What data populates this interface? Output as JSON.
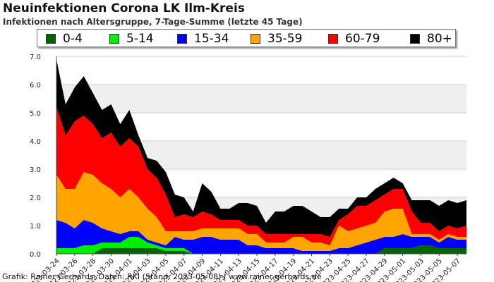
{
  "title": "Neuinfektionen Corona LK Ilm-Kreis",
  "subtitle": "Infektionen nach Altersgruppe, 7-Tage-Summe (letzte 45 Tage)",
  "footer": "Grafik: Rainer Gerhards, Daten: RKI (Stand: 2023-05-08) | www.rainer-gerhards.de",
  "legend": [
    {
      "label": "0-4",
      "color": "#006400"
    },
    {
      "label": "5-14",
      "color": "#00ee00"
    },
    {
      "label": "15-34",
      "color": "#0000ff"
    },
    {
      "label": "35-59",
      "color": "#ffa500"
    },
    {
      "label": "60-79",
      "color": "#ff0000"
    },
    {
      "label": "80+",
      "color": "#000000"
    }
  ],
  "chart_data": {
    "type": "area",
    "stacked": true,
    "ylim": [
      0,
      7
    ],
    "yticks": [
      "0.0",
      "1.0",
      "2.0",
      "3.0",
      "4.0",
      "5.0",
      "6.0",
      "7.0"
    ],
    "grid": true,
    "legend_position": "top",
    "x": [
      "2023-03-24",
      "2023-03-25",
      "2023-03-26",
      "2023-03-27",
      "2023-03-28",
      "2023-03-29",
      "2023-03-30",
      "2023-03-31",
      "2023-04-01",
      "2023-04-02",
      "2023-04-03",
      "2023-04-04",
      "2023-04-05",
      "2023-04-06",
      "2023-04-07",
      "2023-04-08",
      "2023-04-09",
      "2023-04-10",
      "2023-04-11",
      "2023-04-12",
      "2023-04-13",
      "2023-04-14",
      "2023-04-15",
      "2023-04-16",
      "2023-04-17",
      "2023-04-18",
      "2023-04-19",
      "2023-04-20",
      "2023-04-21",
      "2023-04-22",
      "2023-04-23",
      "2023-04-24",
      "2023-04-25",
      "2023-04-26",
      "2023-04-27",
      "2023-04-28",
      "2023-04-29",
      "2023-04-30",
      "2023-05-01",
      "2023-05-02",
      "2023-05-03",
      "2023-05-04",
      "2023-05-05",
      "2023-05-06",
      "2023-05-07",
      "2023-05-08"
    ],
    "xticks": [
      "2023-03-24",
      "2023-03-26",
      "2023-03-28",
      "2023-03-30",
      "2023-04-01",
      "2023-04-03",
      "2023-04-05",
      "2023-04-07",
      "2023-04-09",
      "2023-04-11",
      "2023-04-13",
      "2023-04-15",
      "2023-04-17",
      "2023-04-19",
      "2023-04-21",
      "2023-04-23",
      "2023-04-25",
      "2023-04-27",
      "2023-04-29",
      "2023-05-01",
      "2023-05-03",
      "2023-05-05",
      "2023-05-07"
    ],
    "series": [
      {
        "name": "0-4",
        "color": "#006400",
        "values": [
          0,
          0,
          0,
          0,
          0,
          0.2,
          0.2,
          0.2,
          0.2,
          0.2,
          0.2,
          0.2,
          0.1,
          0.1,
          0.1,
          0,
          0,
          0,
          0,
          0,
          0,
          0,
          0,
          0,
          0,
          0,
          0,
          0,
          0,
          0,
          0,
          0,
          0,
          0,
          0,
          0,
          0.2,
          0.2,
          0.2,
          0.2,
          0.3,
          0.3,
          0.2,
          0.2,
          0.2,
          0.2
        ]
      },
      {
        "name": "5-14",
        "color": "#00ee00",
        "values": [
          0.2,
          0.2,
          0.2,
          0.3,
          0.3,
          0.2,
          0.2,
          0.2,
          0.4,
          0.4,
          0.2,
          0.1,
          0.1,
          0.1,
          0.1,
          0,
          0,
          0,
          0,
          0,
          0,
          0,
          0,
          0,
          0,
          0,
          0,
          0,
          0,
          0,
          0,
          0,
          0,
          0,
          0,
          0,
          0,
          0,
          0,
          0,
          0,
          0,
          0,
          0,
          0,
          0
        ]
      },
      {
        "name": "15-34",
        "color": "#0000ff",
        "values": [
          1.0,
          0.9,
          0.7,
          0.9,
          0.8,
          0.5,
          0.4,
          0.3,
          0.2,
          0.2,
          0.1,
          0.1,
          0.1,
          0.4,
          0.3,
          0.5,
          0.6,
          0.6,
          0.5,
          0.5,
          0.5,
          0.3,
          0.3,
          0.2,
          0.2,
          0.2,
          0.2,
          0.1,
          0.1,
          0.1,
          0.1,
          0.2,
          0.2,
          0.3,
          0.4,
          0.5,
          0.4,
          0.4,
          0.5,
          0.4,
          0.3,
          0.3,
          0.2,
          0.4,
          0.3,
          0.3
        ]
      },
      {
        "name": "35-59",
        "color": "#ffa500",
        "values": [
          1.6,
          1.2,
          1.4,
          1.7,
          1.7,
          1.6,
          1.5,
          1.3,
          1.5,
          1.2,
          1.1,
          0.9,
          0.5,
          0.2,
          0.3,
          0.3,
          0.3,
          0.3,
          0.4,
          0.4,
          0.4,
          0.4,
          0.4,
          0.2,
          0.2,
          0.2,
          0.4,
          0.5,
          0.3,
          0.3,
          0.2,
          0.8,
          0.6,
          0.6,
          0.6,
          0.6,
          0.9,
          1.0,
          0.9,
          0.1,
          0.1,
          0.1,
          0.1,
          0.1,
          0.1,
          0.1
        ]
      },
      {
        "name": "60-79",
        "color": "#ff0000",
        "values": [
          2.4,
          1.9,
          2.4,
          2.0,
          1.8,
          1.6,
          2.0,
          1.8,
          1.8,
          1.8,
          1.4,
          1.4,
          1.3,
          0.5,
          0.6,
          0.5,
          0.6,
          0.5,
          0.3,
          0.3,
          0.3,
          0.3,
          0.3,
          0.3,
          0.3,
          0.3,
          0.1,
          0.1,
          0.3,
          0.3,
          0.3,
          0.2,
          0.6,
          0.8,
          0.7,
          0.8,
          0.6,
          0.7,
          0.7,
          0.8,
          0.4,
          0.4,
          0.3,
          0.3,
          0.3,
          0.4
        ]
      },
      {
        "name": "80+",
        "color": "#000000",
        "values": [
          1.7,
          1.1,
          1.2,
          1.4,
          1.1,
          1.0,
          1.0,
          0.8,
          1.0,
          0.4,
          0.4,
          0.6,
          0.8,
          0.8,
          0.6,
          0.2,
          1.0,
          0.8,
          0.4,
          0.4,
          0.6,
          0.8,
          0.7,
          0.4,
          0.8,
          0.8,
          1.0,
          1.0,
          0.8,
          0.6,
          0.7,
          0.4,
          0.2,
          0.3,
          0.3,
          0.4,
          0.4,
          0.4,
          0.2,
          0.4,
          0.8,
          0.8,
          0.9,
          0.9,
          0.9,
          0.9
        ]
      }
    ]
  }
}
